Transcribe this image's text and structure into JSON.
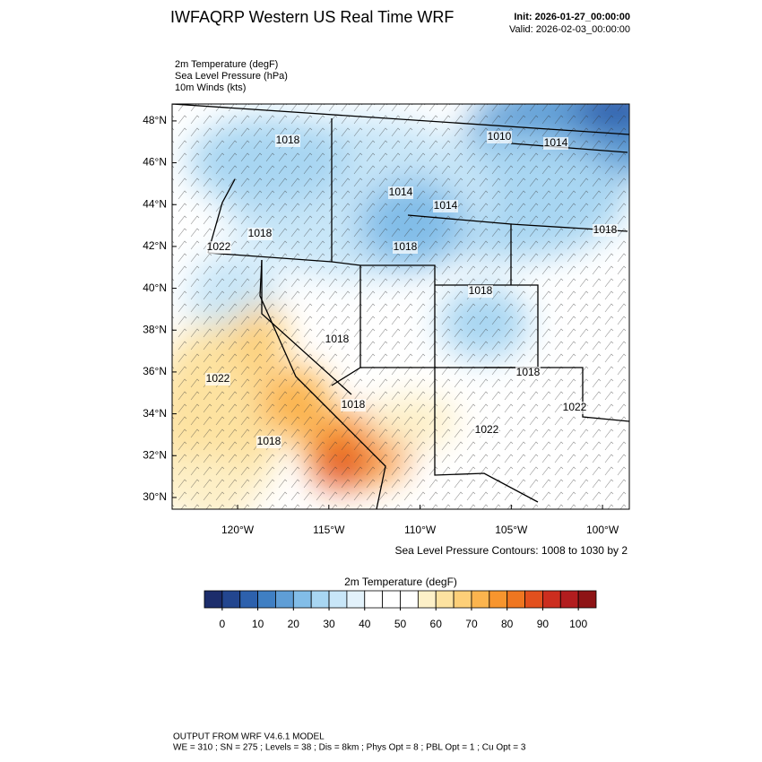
{
  "header": {
    "title": "IWFAQRP Western US Real Time WRF",
    "init": "Init: 2026-01-27_00:00:00",
    "valid": "Valid: 2026-02-03_00:00:00"
  },
  "fields": [
    "2m Temperature   (degF)",
    "Sea Level Pressure   (hPa)",
    "10m Winds   (kts)"
  ],
  "map": {
    "latlim": [
      29.44,
      48.81
    ],
    "lonlim": [
      -123.59,
      -98.53
    ],
    "lat_ticks": [
      {
        "value": 48,
        "label": "48°N"
      },
      {
        "value": 46,
        "label": "46°N"
      },
      {
        "value": 44,
        "label": "44°N"
      },
      {
        "value": 42,
        "label": "42°N"
      },
      {
        "value": 40,
        "label": "40°N"
      },
      {
        "value": 38,
        "label": "38°N"
      },
      {
        "value": 36,
        "label": "36°N"
      },
      {
        "value": 34,
        "label": "34°N"
      },
      {
        "value": 32,
        "label": "32°N"
      },
      {
        "value": 30,
        "label": "30°N"
      }
    ],
    "lon_ticks": [
      {
        "value": -120,
        "label": "120°W"
      },
      {
        "value": -115,
        "label": "115°W"
      },
      {
        "value": -110,
        "label": "110°W"
      },
      {
        "value": -105,
        "label": "105°W"
      },
      {
        "value": -100,
        "label": "100°W"
      }
    ],
    "isobar_labels": [
      "1018",
      "1010",
      "1014",
      "1014",
      "1014",
      "1018",
      "1022",
      "1018",
      "1018",
      "1018",
      "1018",
      "1022",
      "1018",
      "1018",
      "1022",
      "1022",
      "1018"
    ],
    "contour_note": "Sea Level Pressure Contours: 1008 to 1030 by 2"
  },
  "colorbar": {
    "title": "2m Temperature  (degF)",
    "range": [
      -5,
      105
    ],
    "colors": [
      "#1c2d6b",
      "#23468f",
      "#2d61ad",
      "#3f7fc3",
      "#5f9ed6",
      "#82bde8",
      "#a8d6f2",
      "#c8e6f8",
      "#e3f2fb",
      "#ffffff",
      "#ffffff",
      "#ffffff",
      "#fdf0c8",
      "#fde2a0",
      "#fdcf78",
      "#fbb44e",
      "#f7952e",
      "#ef7620",
      "#e2501e",
      "#cc2e1f",
      "#b21d1f",
      "#8e1416"
    ],
    "ticks": [
      0,
      10,
      20,
      30,
      40,
      50,
      60,
      70,
      80,
      90,
      100
    ]
  },
  "footer": {
    "line1": "OUTPUT FROM WRF V4.6.1 MODEL",
    "line2": "WE = 310 ; SN = 275 ; Levels = 38 ; Dis = 8km ; Phys Opt = 8 ; PBL Opt = 1 ; Cu Opt = 3"
  }
}
